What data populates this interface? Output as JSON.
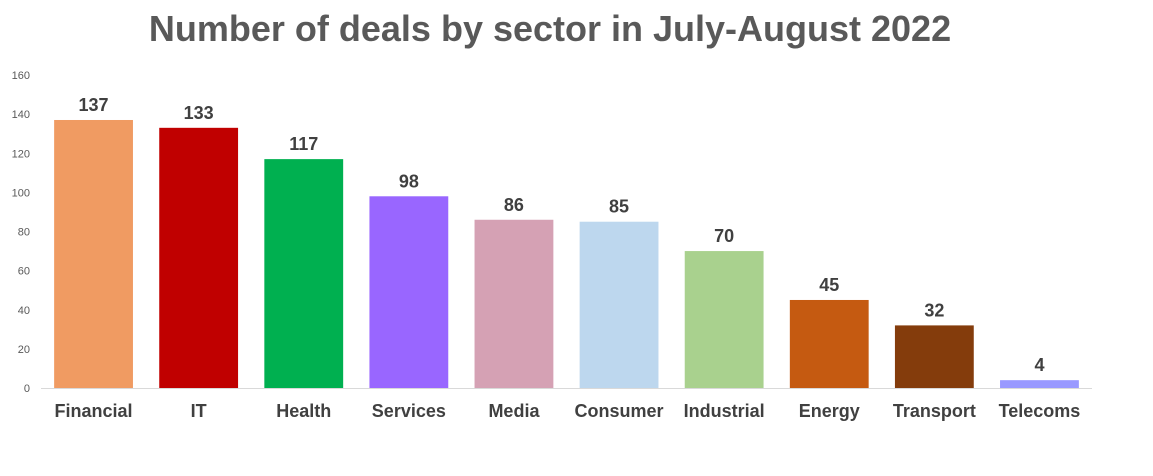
{
  "chart_data": {
    "type": "bar",
    "title": "Number of deals by sector in July-August 2022",
    "categories": [
      "Financial",
      "IT",
      "Health",
      "Services",
      "Media",
      "Consumer",
      "Industrial",
      "Energy",
      "Transport",
      "Telecoms"
    ],
    "values": [
      137,
      133,
      117,
      98,
      86,
      85,
      70,
      45,
      32,
      4
    ],
    "colors": [
      "#F09B62",
      "#C00000",
      "#00B050",
      "#9966FF",
      "#D5A1B4",
      "#BDD7EE",
      "#A9D18E",
      "#C55A11",
      "#843C0C",
      "#9999FF"
    ],
    "ylim": [
      0,
      160
    ],
    "yticks": [
      0,
      20,
      40,
      60,
      80,
      100,
      120,
      140,
      160
    ],
    "grid": false,
    "data_labels": true
  }
}
